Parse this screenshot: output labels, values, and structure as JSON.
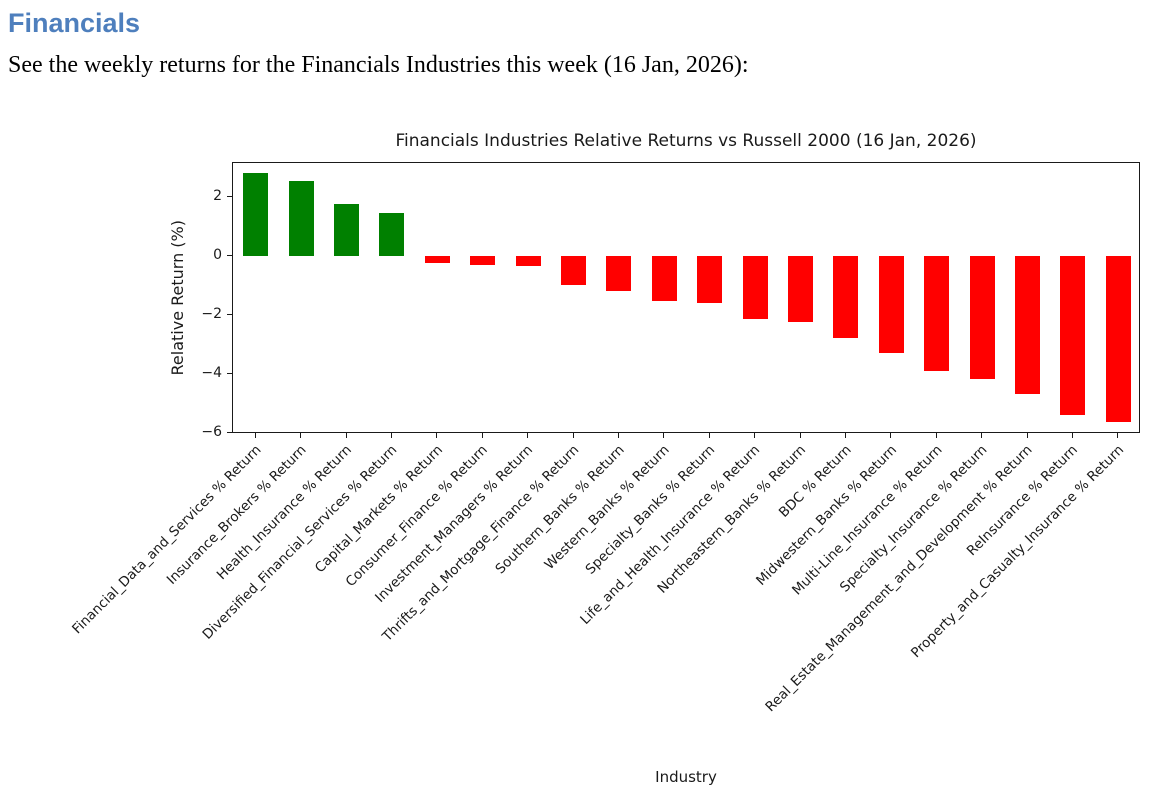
{
  "page": {
    "heading": "Financials",
    "heading_color": "#4e7fbd",
    "intro": "See the weekly returns for the Financials Industries this week (16 Jan, 2026):"
  },
  "chart_data": {
    "type": "bar",
    "title": "Financials Industries Relative Returns vs Russell 2000 (16 Jan, 2026)",
    "xlabel": "Industry",
    "ylabel": "Relative Return (%)",
    "categories": [
      "Financial_Data_and_Services % Return",
      "Insurance_Brokers % Return",
      "Health_Insurance % Return",
      "Diversified_Financial_Services % Return",
      "Capital_Markets % Return",
      "Consumer_Finance % Return",
      "Investment_Managers % Return",
      "Thrifts_and_Mortgage_Finance % Return",
      "Southern_Banks % Return",
      "Western_Banks % Return",
      "Specialty_Banks % Return",
      "Life_and_Health_Insurance % Return",
      "Northeastern_Banks % Return",
      "BDC % Return",
      "Midwestern_Banks % Return",
      "Multi-Line_Insurance % Return",
      "Specialty_Insurance % Return",
      "Real_Estate_Management_and_Development % Return",
      "ReInsurance % Return",
      "Property_and_Casualty_Insurance % Return"
    ],
    "values": [
      2.8,
      2.55,
      1.75,
      1.45,
      -0.25,
      -0.3,
      -0.35,
      -1.0,
      -1.2,
      -1.55,
      -1.6,
      -2.15,
      -2.25,
      -2.8,
      -3.3,
      -3.9,
      -4.2,
      -4.7,
      -5.4,
      -5.65
    ],
    "ylim": [
      -6.05,
      3.15
    ],
    "yticks": [
      2,
      0,
      -2,
      -4,
      -6
    ],
    "grid": false,
    "legend": null,
    "bar_colors": {
      "positive": "#008000",
      "negative": "#ff0000"
    }
  }
}
